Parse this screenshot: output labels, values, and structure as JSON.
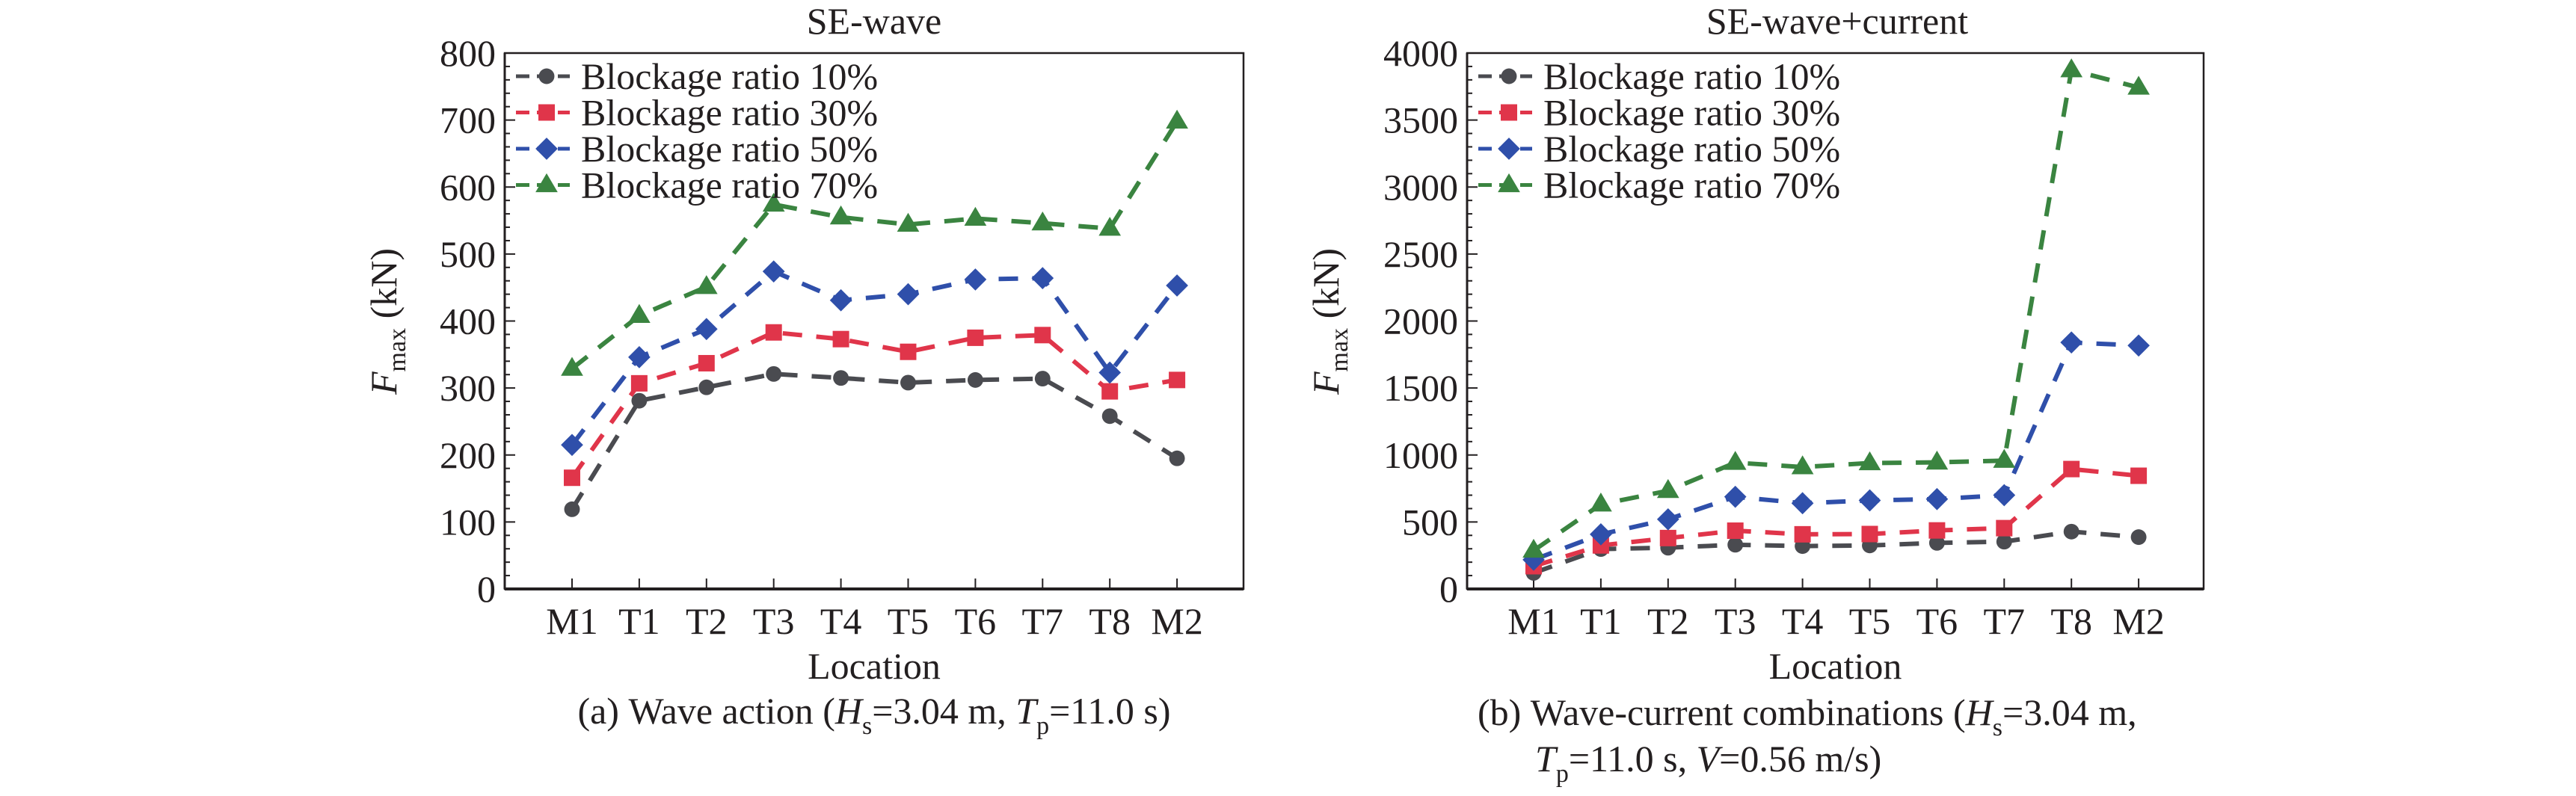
{
  "figure": {
    "panels": [
      {
        "id": "a",
        "title": "SE-wave",
        "caption": {
          "lines": [
            [
              {
                "t": "(a) Wave action ("
              },
              {
                "t": "H",
                "style": "italic"
              },
              {
                "t": "s",
                "style": "sub"
              },
              {
                "t": "=3.04 m, "
              },
              {
                "t": "T",
                "style": "italic"
              },
              {
                "t": "p",
                "style": "sub"
              },
              {
                "t": "=11.0 s)"
              }
            ]
          ]
        }
      },
      {
        "id": "b",
        "title": "SE-wave+current",
        "caption": {
          "lines": [
            [
              {
                "t": "(b) Wave-current combinations ("
              },
              {
                "t": "H",
                "style": "italic"
              },
              {
                "t": "s",
                "style": "sub"
              },
              {
                "t": "=3.04 m,"
              }
            ],
            [
              {
                "t": "T",
                "style": "italic"
              },
              {
                "t": "p",
                "style": "sub"
              },
              {
                "t": "=11.0 s, "
              },
              {
                "t": "V",
                "style": "italic"
              },
              {
                "t": "=0.56 m/s)"
              }
            ]
          ]
        }
      }
    ],
    "colors": {
      "Blockage ratio 10%": "#4a4b50",
      "Blockage ratio 30%": "#e0354a",
      "Blockage ratio 50%": "#2f4faa",
      "Blockage ratio 70%": "#3a8440",
      "axis": "#231f20"
    },
    "markers": {
      "Blockage ratio 10%": "circle",
      "Blockage ratio 30%": "square",
      "Blockage ratio 50%": "diamond",
      "Blockage ratio 70%": "triangle"
    }
  },
  "chart_data": [
    {
      "type": "line",
      "title": "SE-wave",
      "xlabel": "Location",
      "ylabel": "F_max (kN)",
      "ylabel_parts": {
        "main": "F",
        "sub": "max",
        "unit": " (kN)"
      },
      "categories": [
        "M1",
        "T1",
        "T2",
        "T3",
        "T4",
        "T5",
        "T6",
        "T7",
        "T8",
        "M2"
      ],
      "ylim": [
        0,
        800
      ],
      "yticks": [
        0,
        100,
        200,
        300,
        400,
        500,
        600,
        700,
        800
      ],
      "minor_step": 20,
      "grid": false,
      "legend_position": "top-left",
      "series": [
        {
          "name": "Blockage ratio 10%",
          "values": [
            119,
            281,
            301,
            321,
            315,
            308,
            312,
            314,
            258,
            195
          ]
        },
        {
          "name": "Blockage ratio 30%",
          "values": [
            166,
            307,
            337,
            383,
            373,
            354,
            375,
            379,
            295,
            312
          ]
        },
        {
          "name": "Blockage ratio 50%",
          "values": [
            215,
            346,
            388,
            474,
            431,
            440,
            462,
            464,
            323,
            453
          ]
        },
        {
          "name": "Blockage ratio 70%",
          "values": [
            329,
            408,
            451,
            574,
            555,
            544,
            553,
            546,
            538,
            698
          ]
        }
      ]
    },
    {
      "type": "line",
      "title": "SE-wave+current",
      "xlabel": "Location",
      "ylabel": "F_max (kN)",
      "ylabel_parts": {
        "main": "F",
        "sub": "max",
        "unit": " (kN)"
      },
      "categories": [
        "M1",
        "T1",
        "T2",
        "T3",
        "T4",
        "T5",
        "T6",
        "T7",
        "T8",
        "M2"
      ],
      "ylim": [
        0,
        4000
      ],
      "yticks": [
        0,
        500,
        1000,
        1500,
        2000,
        2500,
        3000,
        3500,
        4000
      ],
      "minor_step": 100,
      "grid": false,
      "legend_position": "top-left",
      "series": [
        {
          "name": "Blockage ratio 10%",
          "values": [
            120,
            298,
            308,
            330,
            320,
            325,
            344,
            353,
            428,
            387
          ]
        },
        {
          "name": "Blockage ratio 30%",
          "values": [
            170,
            325,
            380,
            435,
            408,
            410,
            437,
            454,
            895,
            845
          ]
        },
        {
          "name": "Blockage ratio 50%",
          "values": [
            218,
            408,
            520,
            688,
            640,
            661,
            671,
            700,
            1840,
            1817
          ]
        },
        {
          "name": "Blockage ratio 70%",
          "values": [
            287,
            632,
            733,
            943,
            910,
            940,
            945,
            958,
            3873,
            3743
          ]
        }
      ]
    }
  ]
}
